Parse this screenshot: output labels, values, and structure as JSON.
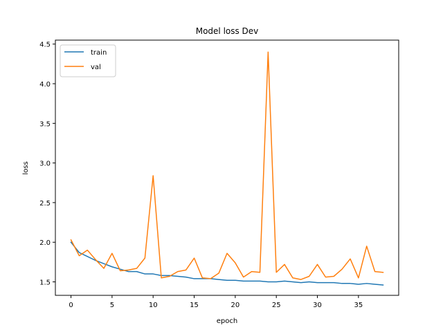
{
  "chart_data": {
    "type": "line",
    "title": "Model loss Dev",
    "xlabel": "epoch",
    "ylabel": "loss",
    "xlim": [
      -1.9,
      39.9
    ],
    "ylim": [
      1.33,
      4.55
    ],
    "xticks": [
      0,
      5,
      10,
      15,
      20,
      25,
      30,
      35
    ],
    "yticks": [
      1.5,
      2.0,
      2.5,
      3.0,
      3.5,
      4.0,
      4.5
    ],
    "ytick_labels": [
      "1.5",
      "2.0",
      "2.5",
      "3.0",
      "3.5",
      "4.0",
      "4.5"
    ],
    "grid": false,
    "legend": "top-left",
    "x": [
      0,
      1,
      2,
      3,
      4,
      5,
      6,
      7,
      8,
      9,
      10,
      11,
      12,
      13,
      14,
      15,
      16,
      17,
      18,
      19,
      20,
      21,
      22,
      23,
      24,
      25,
      26,
      27,
      28,
      29,
      30,
      31,
      32,
      33,
      34,
      35,
      36,
      37,
      38
    ],
    "series": [
      {
        "name": "train",
        "color": "#1f77b4",
        "values": [
          2.0,
          1.87,
          1.82,
          1.77,
          1.73,
          1.69,
          1.66,
          1.63,
          1.63,
          1.6,
          1.6,
          1.58,
          1.58,
          1.57,
          1.56,
          1.54,
          1.54,
          1.54,
          1.53,
          1.52,
          1.52,
          1.51,
          1.51,
          1.51,
          1.5,
          1.5,
          1.51,
          1.5,
          1.49,
          1.5,
          1.49,
          1.49,
          1.49,
          1.48,
          1.48,
          1.47,
          1.48,
          1.47,
          1.46
        ]
      },
      {
        "name": "val",
        "color": "#ff7f0e",
        "values": [
          2.03,
          1.83,
          1.9,
          1.78,
          1.67,
          1.86,
          1.64,
          1.65,
          1.67,
          1.8,
          2.84,
          1.55,
          1.57,
          1.63,
          1.65,
          1.8,
          1.55,
          1.54,
          1.61,
          1.86,
          1.74,
          1.56,
          1.63,
          1.62,
          4.4,
          1.62,
          1.72,
          1.55,
          1.53,
          1.57,
          1.72,
          1.56,
          1.57,
          1.66,
          1.79,
          1.55,
          1.95,
          1.63,
          1.62
        ]
      }
    ]
  }
}
